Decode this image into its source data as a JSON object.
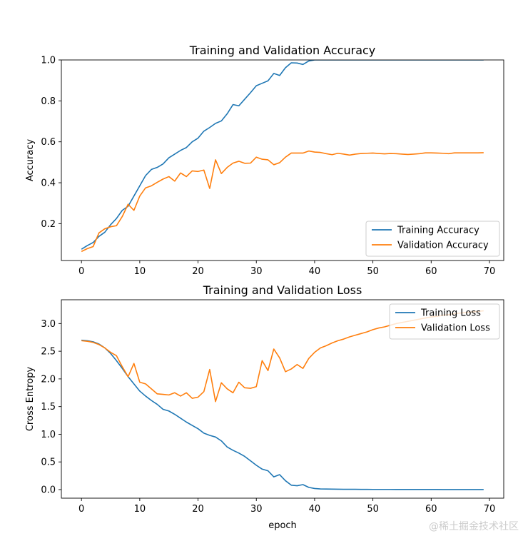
{
  "chart_data": [
    {
      "type": "line",
      "title": "Training and Validation Accuracy",
      "xlabel": "",
      "ylabel": "Accuracy",
      "xlim": [
        -3.45,
        72.45
      ],
      "ylim": [
        0.02,
        1.0
      ],
      "xticks": [
        0,
        10,
        20,
        30,
        40,
        50,
        60,
        70
      ],
      "xtick_labels": [
        "0",
        "10",
        "20",
        "30",
        "40",
        "50",
        "60",
        "70"
      ],
      "yticks": [
        0.2,
        0.4,
        0.6,
        0.8,
        1.0
      ],
      "ytick_labels": [
        "0.2",
        "0.4",
        "0.6",
        "0.8",
        "1.0"
      ],
      "legend_position": "bottom-right",
      "series": [
        {
          "name": "Training Accuracy",
          "color": "#1f77b4",
          "x": [
            0,
            1,
            2,
            3,
            4,
            5,
            6,
            7,
            8,
            9,
            10,
            11,
            12,
            13,
            14,
            15,
            16,
            17,
            18,
            19,
            20,
            21,
            22,
            23,
            24,
            25,
            26,
            27,
            28,
            29,
            30,
            31,
            32,
            33,
            34,
            35,
            36,
            37,
            38,
            39,
            40,
            41,
            42,
            43,
            44,
            45,
            46,
            47,
            48,
            49,
            50,
            51,
            52,
            53,
            54,
            55,
            56,
            57,
            58,
            59,
            60,
            61,
            62,
            63,
            64,
            65,
            66,
            67,
            68,
            69
          ],
          "values": [
            0.075,
            0.093,
            0.108,
            0.138,
            0.158,
            0.195,
            0.225,
            0.265,
            0.285,
            0.335,
            0.385,
            0.435,
            0.465,
            0.475,
            0.492,
            0.522,
            0.54,
            0.558,
            0.572,
            0.6,
            0.618,
            0.652,
            0.67,
            0.69,
            0.702,
            0.737,
            0.782,
            0.776,
            0.808,
            0.84,
            0.874,
            0.886,
            0.898,
            0.934,
            0.924,
            0.962,
            0.986,
            0.985,
            0.978,
            0.995,
            1.0,
            1.0,
            1.0,
            1.0,
            1.0,
            1.0,
            1.0,
            1.0,
            1.0,
            1.0,
            1.0,
            1.0,
            1.0,
            1.0,
            1.0,
            1.0,
            1.0,
            1.0,
            1.0,
            1.0,
            1.0,
            1.0,
            1.0,
            1.0,
            1.0,
            1.0,
            1.0,
            1.0,
            1.0,
            1.0
          ]
        },
        {
          "name": "Validation Accuracy",
          "color": "#ff7f0e",
          "x": [
            0,
            1,
            2,
            3,
            4,
            5,
            6,
            7,
            8,
            9,
            10,
            11,
            12,
            13,
            14,
            15,
            16,
            17,
            18,
            19,
            20,
            21,
            22,
            23,
            24,
            25,
            26,
            27,
            28,
            29,
            30,
            31,
            32,
            33,
            34,
            35,
            36,
            37,
            38,
            39,
            40,
            41,
            42,
            43,
            44,
            45,
            46,
            47,
            48,
            49,
            50,
            51,
            52,
            53,
            54,
            55,
            56,
            57,
            58,
            59,
            60,
            61,
            62,
            63,
            64,
            65,
            66,
            67,
            68,
            69
          ],
          "values": [
            0.064,
            0.078,
            0.088,
            0.155,
            0.175,
            0.185,
            0.19,
            0.235,
            0.295,
            0.265,
            0.335,
            0.375,
            0.385,
            0.402,
            0.418,
            0.43,
            0.408,
            0.448,
            0.43,
            0.458,
            0.455,
            0.462,
            0.372,
            0.512,
            0.445,
            0.475,
            0.496,
            0.505,
            0.495,
            0.496,
            0.525,
            0.515,
            0.512,
            0.488,
            0.498,
            0.525,
            0.545,
            0.545,
            0.545,
            0.555,
            0.55,
            0.548,
            0.542,
            0.537,
            0.544,
            0.54,
            0.535,
            0.54,
            0.543,
            0.544,
            0.545,
            0.543,
            0.541,
            0.543,
            0.542,
            0.54,
            0.538,
            0.54,
            0.542,
            0.546,
            0.546,
            0.545,
            0.544,
            0.542,
            0.546,
            0.546,
            0.546,
            0.546,
            0.546,
            0.547
          ]
        }
      ]
    },
    {
      "type": "line",
      "title": "Training and Validation Loss",
      "xlabel": "epoch",
      "ylabel": "Cross Entropy",
      "xlim": [
        -3.45,
        72.45
      ],
      "ylim": [
        -0.155,
        3.43
      ],
      "xticks": [
        0,
        10,
        20,
        30,
        40,
        50,
        60,
        70
      ],
      "xtick_labels": [
        "0",
        "10",
        "20",
        "30",
        "40",
        "50",
        "60",
        "70"
      ],
      "yticks": [
        0.0,
        0.5,
        1.0,
        1.5,
        2.0,
        2.5,
        3.0
      ],
      "ytick_labels": [
        "0.0",
        "0.5",
        "1.0",
        "1.5",
        "2.0",
        "2.5",
        "3.0"
      ],
      "legend_position": "top-right",
      "series": [
        {
          "name": "Training Loss",
          "color": "#1f77b4",
          "x": [
            0,
            1,
            2,
            3,
            4,
            5,
            6,
            7,
            8,
            9,
            10,
            11,
            12,
            13,
            14,
            15,
            16,
            17,
            18,
            19,
            20,
            21,
            22,
            23,
            24,
            25,
            26,
            27,
            28,
            29,
            30,
            31,
            32,
            33,
            34,
            35,
            36,
            37,
            38,
            39,
            40,
            41,
            42,
            43,
            44,
            45,
            46,
            47,
            48,
            49,
            50,
            51,
            52,
            53,
            54,
            55,
            56,
            57,
            58,
            59,
            60,
            61,
            62,
            63,
            64,
            65,
            66,
            67,
            68,
            69
          ],
          "values": [
            2.7,
            2.69,
            2.67,
            2.63,
            2.56,
            2.46,
            2.33,
            2.19,
            2.04,
            1.91,
            1.78,
            1.69,
            1.61,
            1.54,
            1.45,
            1.42,
            1.36,
            1.29,
            1.22,
            1.16,
            1.1,
            1.02,
            0.98,
            0.95,
            0.88,
            0.77,
            0.71,
            0.66,
            0.6,
            0.52,
            0.44,
            0.37,
            0.34,
            0.23,
            0.27,
            0.16,
            0.08,
            0.07,
            0.09,
            0.04,
            0.02,
            0.012,
            0.01,
            0.008,
            0.007,
            0.006,
            0.005,
            0.005,
            0.004,
            0.004,
            0.003,
            0.003,
            0.003,
            0.003,
            0.002,
            0.002,
            0.002,
            0.002,
            0.002,
            0.002,
            0.002,
            0.002,
            0.001,
            0.001,
            0.001,
            0.001,
            0.001,
            0.001,
            0.001,
            0.001
          ]
        },
        {
          "name": "Validation Loss",
          "color": "#ff7f0e",
          "x": [
            0,
            1,
            2,
            3,
            4,
            5,
            6,
            7,
            8,
            9,
            10,
            11,
            12,
            13,
            14,
            15,
            16,
            17,
            18,
            19,
            20,
            21,
            22,
            23,
            24,
            25,
            26,
            27,
            28,
            29,
            30,
            31,
            32,
            33,
            34,
            35,
            36,
            37,
            38,
            39,
            40,
            41,
            42,
            43,
            44,
            45,
            46,
            47,
            48,
            49,
            50,
            51,
            52,
            53,
            54,
            55,
            56,
            57,
            58,
            59,
            60,
            61,
            62,
            63,
            64,
            65,
            66,
            67,
            68,
            69
          ],
          "values": [
            2.69,
            2.68,
            2.66,
            2.62,
            2.56,
            2.48,
            2.42,
            2.22,
            2.04,
            2.28,
            1.94,
            1.91,
            1.82,
            1.73,
            1.72,
            1.71,
            1.75,
            1.69,
            1.75,
            1.65,
            1.67,
            1.77,
            2.17,
            1.59,
            1.93,
            1.82,
            1.75,
            1.94,
            1.84,
            1.83,
            1.86,
            2.33,
            2.15,
            2.54,
            2.38,
            2.13,
            2.18,
            2.26,
            2.19,
            2.37,
            2.48,
            2.56,
            2.6,
            2.65,
            2.69,
            2.72,
            2.76,
            2.79,
            2.82,
            2.85,
            2.89,
            2.92,
            2.94,
            2.97,
            3.0,
            3.02,
            3.04,
            3.06,
            3.08,
            3.1,
            3.12,
            3.13,
            3.15,
            3.16,
            3.18,
            3.19,
            3.2,
            3.21,
            3.22,
            3.23
          ]
        }
      ]
    }
  ],
  "watermark": "@稀土掘金技术社区"
}
